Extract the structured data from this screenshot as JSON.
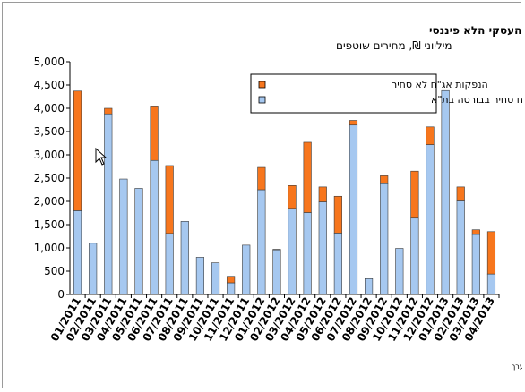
{
  "chart_data": {
    "type": "bar",
    "stacked": true,
    "title": "נתונים חודשיים על הנפקות אג\"ח של הסקטור העסקי הלא פיננסי",
    "subtitle": "מיליוני ₪, מחירים שוטפים",
    "source": "מקור נתוני אג\"ח סחיר - הבורסה לניירות ערך",
    "ylim": [
      0,
      5000
    ],
    "yticks": [
      0,
      500,
      1000,
      1500,
      2000,
      2500,
      3000,
      3500,
      4000,
      4500,
      5000
    ],
    "ytick_labels": [
      "0",
      "500",
      "1,000",
      "1,500",
      "2,000",
      "2,500",
      "3,000",
      "3,500",
      "4,000",
      "4,500",
      "5,000"
    ],
    "grid": false,
    "legend_position": "top-right",
    "categories": [
      "01/2011",
      "02/2011",
      "03/2011",
      "04/2011",
      "05/2011",
      "06/2011",
      "07/2011",
      "08/2011",
      "09/2011",
      "10/2011",
      "11/2011",
      "12/2011",
      "01/2012",
      "02/2012",
      "03/2012",
      "04/2012",
      "05/2012",
      "06/2012",
      "07/2012",
      "08/2012",
      "09/2012",
      "10/2012",
      "11/2012",
      "12/2012",
      "01/2013",
      "02/2013",
      "03/2013",
      "04/2013"
    ],
    "x_tick_labels": [
      "01/2011",
      "02/2011",
      "03/2011",
      "04/2011",
      "05/2011",
      "06/2011",
      "07/2011",
      "08/2011",
      "09/2011",
      "10/2011",
      "11/2011",
      "12/2011",
      "01/2012",
      "02/2012",
      "03/2012",
      "04/2012",
      "05/2012",
      "06/2012",
      "07/2012",
      "08/2012",
      "09/2012",
      "10/2012",
      "11/2012",
      "12/2012",
      "01/2013",
      "02/2013",
      "03/2013",
      "04/2013"
    ],
    "series": [
      {
        "name": "הנפקות אג\"ח סחיר בבורסה בת\"א",
        "color": "#a6c8f0",
        "values": [
          1800,
          1100,
          3880,
          2480,
          2280,
          2880,
          1310,
          1570,
          800,
          680,
          250,
          1060,
          2250,
          960,
          1850,
          1760,
          1990,
          1320,
          3640,
          340,
          2380,
          990,
          1640,
          3220,
          4380,
          2010,
          1290,
          440
        ]
      },
      {
        "name": "הנפקות אג\"ח לא סחיר",
        "color": "#f7761d",
        "values": [
          2570,
          0,
          120,
          0,
          0,
          1170,
          1460,
          0,
          0,
          0,
          140,
          0,
          480,
          10,
          490,
          1510,
          320,
          790,
          100,
          0,
          170,
          0,
          1010,
          380,
          0,
          300,
          100,
          910
        ]
      }
    ]
  }
}
